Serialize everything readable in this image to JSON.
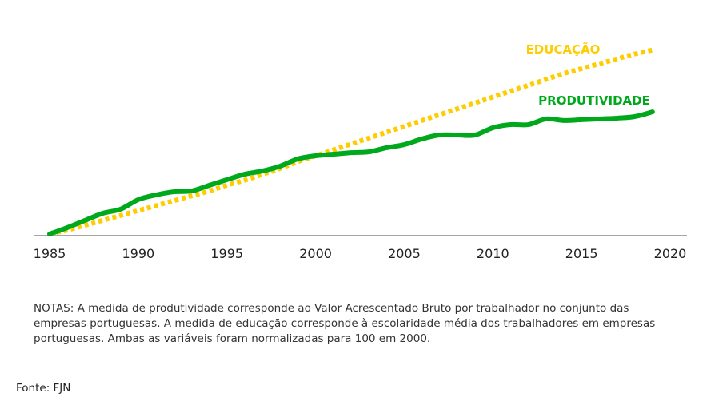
{
  "chart_data": {
    "type": "line",
    "title": "",
    "xlabel": "",
    "ylabel": "",
    "x_ticks": [
      "1985",
      "1990",
      "1995",
      "2000",
      "2005",
      "2010",
      "2015",
      "2020"
    ],
    "xlim": [
      1985,
      2020
    ],
    "ylim": [
      60,
      160
    ],
    "grid": false,
    "x": [
      1985,
      1986,
      1987,
      1988,
      1989,
      1990,
      1991,
      1992,
      1993,
      1994,
      1995,
      1996,
      1997,
      1998,
      1999,
      2000,
      2001,
      2002,
      2003,
      2004,
      2005,
      2006,
      2007,
      2008,
      2009,
      2010,
      2011,
      2012,
      2013,
      2014,
      2015,
      2016,
      2017,
      2018,
      2019
    ],
    "series": [
      {
        "name": "EDUCAÇÃO",
        "color": "#FFCC00",
        "style": "dotted",
        "values": [
          60,
          62,
          64.5,
          67,
          69.5,
          72,
          74.5,
          77,
          79.5,
          82,
          85,
          87.5,
          90.5,
          93.5,
          97,
          100,
          103,
          106,
          109,
          112,
          115,
          118,
          121,
          124,
          127,
          130,
          133,
          136,
          139,
          142,
          144.5,
          147,
          149.5,
          152,
          154
        ]
      },
      {
        "name": "PRODUTIVIDADE",
        "color": "#00A91C",
        "style": "solid",
        "values": [
          60,
          63.3,
          67,
          70.6,
          72.7,
          77.6,
          80,
          81.6,
          82,
          84.9,
          87.8,
          90.6,
          92.2,
          94.7,
          98.4,
          100,
          100.8,
          101.6,
          102,
          104.1,
          105.7,
          108.6,
          110.6,
          110.6,
          110.6,
          114.3,
          115.9,
          115.9,
          118.8,
          118,
          118.4,
          118.8,
          119.2,
          120,
          122.4
        ]
      }
    ]
  },
  "notes": "NOTAS: A medida de produtividade corresponde ao Valor Acrescentado Bruto por trabalhador no conjunto das empresas portuguesas. A medida de educação corresponde à escolaridade média dos trabalhadores em empresas portuguesas. Ambas as variáveis foram normalizadas para 100 em 2000.",
  "notes_lines": [
    "NOTAS: A medida de produtividade corresponde ao Valor Acrescentado Bruto por trabalhador no conjunto das",
    "empresas portuguesas. A medida de educação corresponde à escolaridade média dos trabalhadores em empresas",
    "portuguesas. Ambas as variáveis foram normalizadas para 100 em 2000."
  ],
  "source": "Fonte: FJN"
}
